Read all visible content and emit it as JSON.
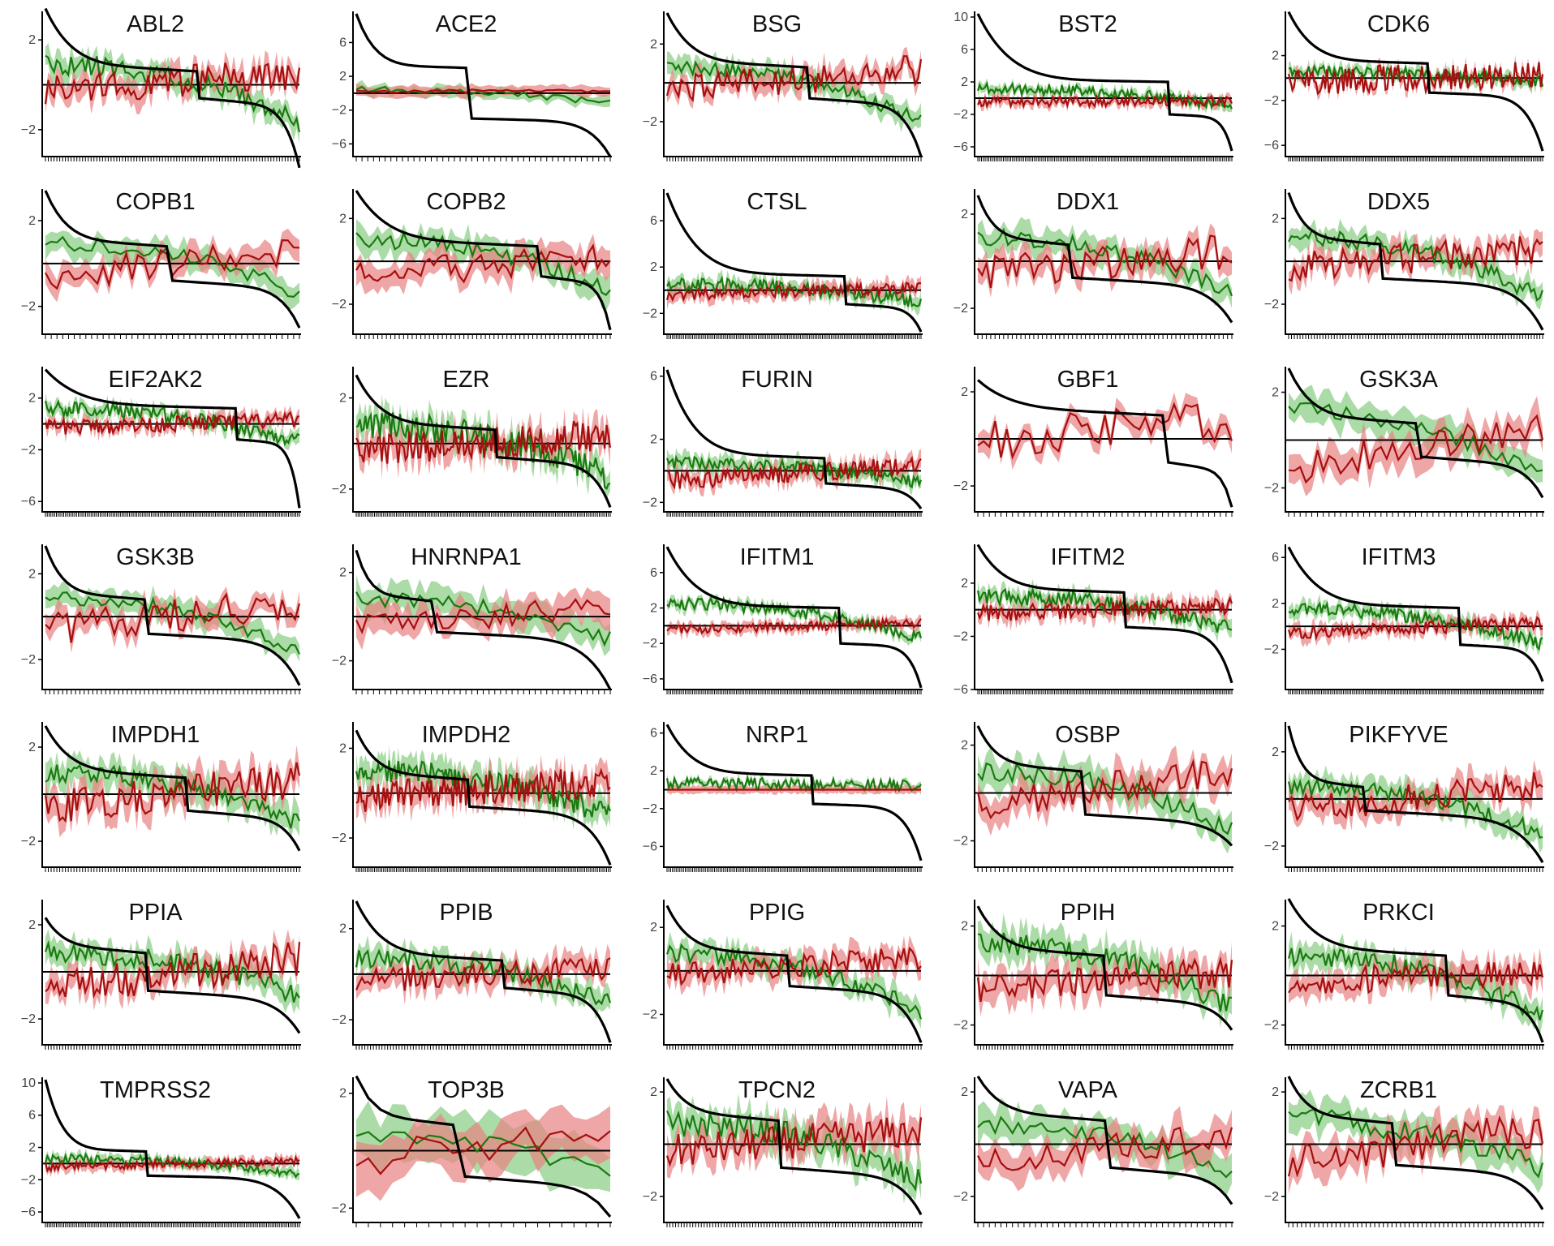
{
  "figure": {
    "colors": {
      "median": "#000000",
      "green": "#1a7a10",
      "green_band": "#8fd08a",
      "red": "#a50f0f",
      "red_band": "#e88080",
      "axis": "#000000"
    }
  },
  "chart_data": [
    {
      "type": "line",
      "title": "ABL2",
      "ylim": [
        -3.2,
        3.2
      ],
      "yticks": [
        -2,
        2
      ],
      "n": 90,
      "seed": 11,
      "top": 3.0,
      "bottom": -3.7,
      "step": 0.6,
      "stepfrac": 0.6,
      "gmean": 0.9,
      "gend": -1.7,
      "rstart": -0.2,
      "rend": 0.5,
      "gnoise": 0.45,
      "rnoise": 0.7,
      "band": 0.5
    },
    {
      "type": "line",
      "title": "ACE2",
      "ylim": [
        -7.5,
        9.5
      ],
      "yticks": [
        -6,
        -2,
        2,
        6
      ],
      "n": 45,
      "seed": 12,
      "top": 9.0,
      "bottom": -7.5,
      "step": 3.0,
      "stepfrac": 0.45,
      "gmean": 0.5,
      "gend": -1.2,
      "rstart": 0.2,
      "rend": 0.3,
      "gnoise": 0.4,
      "rnoise": 0.2,
      "band": 0.6
    },
    {
      "type": "line",
      "title": "BSG",
      "ylim": [
        -3.8,
        3.6
      ],
      "yticks": [
        -2,
        2
      ],
      "n": 90,
      "seed": 13,
      "top": 3.2,
      "bottom": -3.8,
      "step": 0.8,
      "stepfrac": 0.55,
      "gmean": 0.8,
      "gend": -2.0,
      "rstart": -0.4,
      "rend": 0.7,
      "gnoise": 0.35,
      "rnoise": 0.75,
      "band": 0.5
    },
    {
      "type": "line",
      "title": "BST2",
      "ylim": [
        -7.2,
        10.5
      ],
      "yticks": [
        -6,
        -2,
        2,
        6,
        10
      ],
      "n": 140,
      "seed": 14,
      "top": 10.0,
      "bottom": -6.5,
      "step": 2.0,
      "stepfrac": 0.75,
      "gmean": 1.2,
      "gend": -1.0,
      "rstart": -0.5,
      "rend": -0.3,
      "gnoise": 0.7,
      "rnoise": 0.6,
      "band": 0.6
    },
    {
      "type": "line",
      "title": "CDK6",
      "ylim": [
        -7.0,
        5.8
      ],
      "yticks": [
        -6,
        -2,
        2
      ],
      "n": 140,
      "seed": 15,
      "top": 5.5,
      "bottom": -6.5,
      "step": 1.3,
      "stepfrac": 0.55,
      "gmean": 0.6,
      "gend": -0.4,
      "rstart": -0.3,
      "rend": 0.3,
      "gnoise": 0.5,
      "rnoise": 1.2,
      "band": 0.5
    },
    {
      "type": "line",
      "title": "COPB1",
      "ylim": [
        -3.3,
        3.4
      ],
      "yticks": [
        -2,
        2
      ],
      "n": 45,
      "seed": 21,
      "top": 3.0,
      "bottom": -3.0,
      "step": 0.8,
      "stepfrac": 0.48,
      "gmean": 0.9,
      "gend": -1.4,
      "rstart": -0.6,
      "rend": 0.6,
      "gnoise": 0.35,
      "rnoise": 0.7,
      "band": 0.5
    },
    {
      "type": "line",
      "title": "COPB2",
      "ylim": [
        -3.4,
        3.3
      ],
      "yticks": [
        -2,
        2
      ],
      "n": 60,
      "seed": 22,
      "top": 2.9,
      "bottom": -3.2,
      "step": 0.7,
      "stepfrac": 0.72,
      "gmean": 1.0,
      "gend": -1.3,
      "rstart": -0.7,
      "rend": 0.3,
      "gnoise": 0.4,
      "rnoise": 0.7,
      "band": 0.6
    },
    {
      "type": "line",
      "title": "CTSL",
      "ylim": [
        -3.8,
        8.6
      ],
      "yticks": [
        -2,
        2,
        6
      ],
      "n": 140,
      "seed": 23,
      "top": 8.0,
      "bottom": -3.6,
      "step": 1.2,
      "stepfrac": 0.7,
      "gmean": 0.5,
      "gend": -1.0,
      "rstart": -0.4,
      "rend": 0.2,
      "gnoise": 0.6,
      "rnoise": 0.5,
      "band": 0.6
    },
    {
      "type": "line",
      "title": "DDX1",
      "ylim": [
        -3.1,
        3.0
      ],
      "yticks": [
        -2,
        2
      ],
      "n": 60,
      "seed": 24,
      "top": 2.4,
      "bottom": -2.6,
      "step": 0.7,
      "stepfrac": 0.37,
      "gmean": 1.0,
      "gend": -1.4,
      "rstart": -0.6,
      "rend": 0.4,
      "gnoise": 0.35,
      "rnoise": 0.8,
      "band": 0.5
    },
    {
      "type": "line",
      "title": "DDX5",
      "ylim": [
        -3.4,
        3.3
      ],
      "yticks": [
        -2,
        2
      ],
      "n": 90,
      "seed": 25,
      "top": 2.8,
      "bottom": -3.2,
      "step": 0.8,
      "stepfrac": 0.37,
      "gmean": 1.1,
      "gend": -1.7,
      "rstart": -0.3,
      "rend": 0.6,
      "gnoise": 0.4,
      "rnoise": 0.7,
      "band": 0.5
    },
    {
      "type": "line",
      "title": "EIF2AK2",
      "ylim": [
        -6.8,
        4.3
      ],
      "yticks": [
        -6,
        -2,
        2
      ],
      "n": 140,
      "seed": 31,
      "top": 3.8,
      "bottom": -6.5,
      "step": 1.2,
      "stepfrac": 0.75,
      "gmean": 1.2,
      "gend": -1.4,
      "rstart": -0.3,
      "rend": 0.3,
      "gnoise": 0.6,
      "rnoise": 0.6,
      "band": 0.5
    },
    {
      "type": "line",
      "title": "EZR",
      "ylim": [
        -3.0,
        3.3
      ],
      "yticks": [
        -2,
        2
      ],
      "n": 140,
      "seed": 32,
      "top": 2.6,
      "bottom": -2.8,
      "step": 0.6,
      "stepfrac": 0.55,
      "gmean": 0.8,
      "gend": -1.5,
      "rstart": -0.3,
      "rend": 0.4,
      "gnoise": 0.6,
      "rnoise": 0.7,
      "band": 0.6
    },
    {
      "type": "line",
      "title": "FURIN",
      "ylim": [
        -2.6,
        6.5
      ],
      "yticks": [
        -2,
        2,
        6
      ],
      "n": 140,
      "seed": 33,
      "top": 6.0,
      "bottom": -2.4,
      "step": 0.8,
      "stepfrac": 0.62,
      "gmean": 0.5,
      "gend": -0.8,
      "rstart": -0.6,
      "rend": 0.3,
      "gnoise": 0.4,
      "rnoise": 0.6,
      "band": 0.5
    },
    {
      "type": "line",
      "title": "GBF1",
      "ylim": [
        -3.1,
        3.0
      ],
      "yticks": [
        -2,
        2
      ],
      "n": 45,
      "seed": 34,
      "top": 2.1,
      "bottom": -2.9,
      "step": 1.0,
      "stepfrac": 0.74,
      "gmean": null,
      "gend": null,
      "rstart": 0.0,
      "rend": 0.8,
      "gnoise": 0.0,
      "rnoise": 0.9,
      "band": 0.4
    },
    {
      "type": "line",
      "title": "GSK3A",
      "ylim": [
        -3.0,
        3.0
      ],
      "yticks": [
        -2,
        2
      ],
      "n": 45,
      "seed": 35,
      "top": 2.6,
      "bottom": -2.4,
      "step": 0.7,
      "stepfrac": 0.5,
      "gmean": 1.2,
      "gend": -1.6,
      "rstart": -1.2,
      "rend": 0.6,
      "gnoise": 0.35,
      "rnoise": 0.7,
      "band": 0.6
    },
    {
      "type": "line",
      "title": "GSK3B",
      "ylim": [
        -3.4,
        3.3
      ],
      "yticks": [
        -2,
        2
      ],
      "n": 60,
      "seed": 41,
      "top": 2.9,
      "bottom": -3.2,
      "step": 0.8,
      "stepfrac": 0.4,
      "gmean": 0.9,
      "gend": -1.7,
      "rstart": -0.6,
      "rend": 0.6,
      "gnoise": 0.35,
      "rnoise": 0.8,
      "band": 0.5
    },
    {
      "type": "line",
      "title": "HNRNPA1",
      "ylim": [
        -3.3,
        3.2
      ],
      "yticks": [
        -2,
        2
      ],
      "n": 45,
      "seed": 42,
      "top": 2.6,
      "bottom": -3.3,
      "step": 0.7,
      "stepfrac": 0.3,
      "gmean": 0.8,
      "gend": -1.0,
      "rstart": -0.4,
      "rend": 0.4,
      "gnoise": 0.35,
      "rnoise": 0.55,
      "band": 0.6
    },
    {
      "type": "line",
      "title": "IFITM1",
      "ylim": [
        -7.2,
        9.0
      ],
      "yticks": [
        -6,
        -2,
        2,
        6
      ],
      "n": 140,
      "seed": 43,
      "top": 8.5,
      "bottom": -7.0,
      "step": 2.0,
      "stepfrac": 0.68,
      "gmean": 2.5,
      "gend": -1.5,
      "rstart": -0.5,
      "rend": 0.3,
      "gnoise": 0.7,
      "rnoise": 0.5,
      "band": 0.6
    },
    {
      "type": "line",
      "title": "IFITM2",
      "ylim": [
        -6.0,
        4.8
      ],
      "yticks": [
        -6,
        -2,
        2
      ],
      "n": 140,
      "seed": 44,
      "top": 4.5,
      "bottom": -5.5,
      "step": 1.3,
      "stepfrac": 0.58,
      "gmean": 1.0,
      "gend": -1.5,
      "rstart": -0.3,
      "rend": 0.3,
      "gnoise": 0.6,
      "rnoise": 0.6,
      "band": 0.6
    },
    {
      "type": "line",
      "title": "IFITM3",
      "ylim": [
        -5.5,
        7.0
      ],
      "yticks": [
        -2,
        2,
        6
      ],
      "n": 140,
      "seed": 45,
      "top": 6.5,
      "bottom": -4.8,
      "step": 1.6,
      "stepfrac": 0.67,
      "gmean": 1.5,
      "gend": -1.5,
      "rstart": -0.6,
      "rend": 0.3,
      "gnoise": 0.6,
      "rnoise": 0.55,
      "band": 0.6
    },
    {
      "type": "line",
      "title": "IMPDH1",
      "ylim": [
        -3.1,
        3.0
      ],
      "yticks": [
        -2,
        2
      ],
      "n": 90,
      "seed": 51,
      "top": 2.5,
      "bottom": -2.4,
      "step": 0.7,
      "stepfrac": 0.55,
      "gmean": 0.9,
      "gend": -1.3,
      "rstart": -0.7,
      "rend": 0.6,
      "gnoise": 0.4,
      "rnoise": 0.8,
      "band": 0.6
    },
    {
      "type": "line",
      "title": "IMPDH2",
      "ylim": [
        -3.3,
        3.1
      ],
      "yticks": [
        -2,
        2
      ],
      "n": 140,
      "seed": 52,
      "top": 2.4,
      "bottom": -3.2,
      "step": 0.6,
      "stepfrac": 0.44,
      "gmean": 1.0,
      "gend": -1.0,
      "rstart": -0.2,
      "rend": 0.5,
      "gnoise": 0.5,
      "rnoise": 0.7,
      "band": 0.6
    },
    {
      "type": "line",
      "title": "NRP1",
      "ylim": [
        -8.2,
        7.0
      ],
      "yticks": [
        -6,
        -2,
        2,
        6
      ],
      "n": 140,
      "seed": 53,
      "top": 6.5,
      "bottom": -7.5,
      "step": 1.5,
      "stepfrac": 0.57,
      "gmean": 0.7,
      "gend": 0.4,
      "rstart": 0.0,
      "rend": 0.0,
      "gnoise": 0.6,
      "rnoise": 0.0,
      "band": 0.4
    },
    {
      "type": "line",
      "title": "OSBP",
      "ylim": [
        -3.1,
        2.9
      ],
      "yticks": [
        -2,
        2
      ],
      "n": 60,
      "seed": 54,
      "top": 2.4,
      "bottom": -2.2,
      "step": 0.9,
      "stepfrac": 0.42,
      "gmean": 0.9,
      "gend": -1.6,
      "rstart": -0.6,
      "rend": 1.0,
      "gnoise": 0.4,
      "rnoise": 0.65,
      "band": 0.6
    },
    {
      "type": "line",
      "title": "PIKFYVE",
      "ylim": [
        -2.9,
        3.2
      ],
      "yticks": [
        -2,
        2
      ],
      "n": 90,
      "seed": 55,
      "top": 2.7,
      "bottom": -2.7,
      "step": 0.5,
      "stepfrac": 0.3,
      "gmean": 0.5,
      "gend": -1.5,
      "rstart": -0.5,
      "rend": 0.6,
      "gnoise": 0.35,
      "rnoise": 0.6,
      "band": 0.5
    },
    {
      "type": "line",
      "title": "PPIA",
      "ylim": [
        -3.1,
        3.0
      ],
      "yticks": [
        -2,
        2
      ],
      "n": 90,
      "seed": 61,
      "top": 1.9,
      "bottom": -2.6,
      "step": 0.8,
      "stepfrac": 0.4,
      "gmean": 0.8,
      "gend": -1.0,
      "rstart": -0.8,
      "rend": 0.6,
      "gnoise": 0.45,
      "rnoise": 0.8,
      "band": 0.5
    },
    {
      "type": "line",
      "title": "PPIB",
      "ylim": [
        -3.1,
        3.2
      ],
      "yticks": [
        -2,
        2
      ],
      "n": 90,
      "seed": 62,
      "top": 2.8,
      "bottom": -3.0,
      "step": 0.6,
      "stepfrac": 0.58,
      "gmean": 0.7,
      "gend": -1.3,
      "rstart": -0.3,
      "rend": 0.3,
      "gnoise": 0.4,
      "rnoise": 0.55,
      "band": 0.5
    },
    {
      "type": "line",
      "title": "PPIG",
      "ylim": [
        -3.4,
        3.2
      ],
      "yticks": [
        -2,
        2
      ],
      "n": 90,
      "seed": 63,
      "top": 2.6,
      "bottom": -3.3,
      "step": 0.7,
      "stepfrac": 0.48,
      "gmean": 0.8,
      "gend": -1.9,
      "rstart": -0.2,
      "rend": 0.6,
      "gnoise": 0.4,
      "rnoise": 0.55,
      "band": 0.5
    },
    {
      "type": "line",
      "title": "PPIH",
      "ylim": [
        -2.8,
        3.0
      ],
      "yticks": [
        -2,
        2
      ],
      "n": 90,
      "seed": 64,
      "top": 2.4,
      "bottom": -2.2,
      "step": 0.8,
      "stepfrac": 0.5,
      "gmean": 1.3,
      "gend": -1.3,
      "rstart": -0.6,
      "rend": 0.1,
      "gnoise": 0.45,
      "rnoise": 0.65,
      "band": 0.6
    },
    {
      "type": "line",
      "title": "PRKCI",
      "ylim": [
        -2.8,
        3.0
      ],
      "yticks": [
        -2,
        2
      ],
      "n": 90,
      "seed": 65,
      "top": 2.7,
      "bottom": -2.7,
      "step": 0.8,
      "stepfrac": 0.62,
      "gmean": 0.8,
      "gend": -1.6,
      "rstart": -0.3,
      "rend": 0.2,
      "gnoise": 0.4,
      "rnoise": 0.55,
      "band": 0.5
    },
    {
      "type": "line",
      "title": "TMPRSS2",
      "ylim": [
        -7.3,
        10.5
      ],
      "yticks": [
        -6,
        -2,
        2,
        6,
        10
      ],
      "n": 140,
      "seed": 71,
      "top": 10.0,
      "bottom": -6.8,
      "step": 1.5,
      "stepfrac": 0.4,
      "gmean": 0.6,
      "gend": -1.3,
      "rstart": -0.4,
      "rend": 0.3,
      "gnoise": 0.6,
      "rnoise": 0.5,
      "band": 0.6
    },
    {
      "type": "line",
      "title": "TOP3B",
      "ylim": [
        -2.5,
        2.5
      ],
      "yticks": [
        -2,
        2
      ],
      "n": 22,
      "seed": 72,
      "top": 2.2,
      "bottom": -2.3,
      "step": 0.9,
      "stepfrac": 0.4,
      "gmean": 0.5,
      "gend": -0.8,
      "rstart": -0.3,
      "rend": 0.6,
      "gnoise": 0.3,
      "rnoise": 0.6,
      "band": 0.8
    },
    {
      "type": "line",
      "title": "TPCN2",
      "ylim": [
        -3.0,
        2.5
      ],
      "yticks": [
        -2,
        2
      ],
      "n": 90,
      "seed": 73,
      "top": 2.1,
      "bottom": -2.7,
      "step": 0.9,
      "stepfrac": 0.44,
      "gmean": 0.8,
      "gend": -1.5,
      "rstart": -0.3,
      "rend": 0.5,
      "gnoise": 0.5,
      "rnoise": 0.65,
      "band": 0.6
    },
    {
      "type": "line",
      "title": "VAPA",
      "ylim": [
        -3.0,
        2.5
      ],
      "yticks": [
        -2,
        2
      ],
      "n": 45,
      "seed": 74,
      "top": 2.2,
      "bottom": -2.3,
      "step": 0.9,
      "stepfrac": 0.52,
      "gmean": 0.7,
      "gend": -1.0,
      "rstart": -0.8,
      "rend": 0.3,
      "gnoise": 0.35,
      "rnoise": 0.6,
      "band": 0.6
    },
    {
      "type": "line",
      "title": "ZCRB1",
      "ylim": [
        -3.0,
        2.5
      ],
      "yticks": [
        -2,
        2
      ],
      "n": 60,
      "seed": 75,
      "top": 2.2,
      "bottom": -2.5,
      "step": 0.8,
      "stepfrac": 0.42,
      "gmean": 0.9,
      "gend": -1.0,
      "rstart": -0.7,
      "rend": 0.6,
      "gnoise": 0.45,
      "rnoise": 0.7,
      "band": 0.6
    }
  ]
}
